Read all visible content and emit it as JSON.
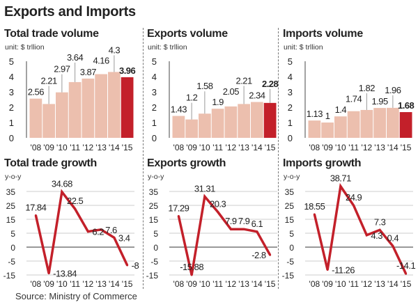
{
  "title": "Exports and Imports",
  "source": "Source: Ministry of Commerce",
  "colors": {
    "bar": "#ecbfae",
    "bar_highlight": "#c3202a",
    "line": "#c3202a"
  },
  "chart_data": [
    {
      "type": "bar",
      "title": "Total trade volume",
      "unit": "unit: $ trllion",
      "categories": [
        "'08",
        "'09",
        "'10",
        "'11",
        "'12",
        "'13",
        "'14",
        "'15"
      ],
      "values": [
        2.56,
        2.21,
        2.97,
        3.64,
        3.87,
        4.16,
        4.3,
        3.96
      ],
      "yticks": [
        0,
        1,
        2,
        3,
        4,
        5
      ],
      "ylim": [
        0,
        5
      ],
      "highlight": "'15"
    },
    {
      "type": "bar",
      "title": "Exports volume",
      "unit": "unit: $ trllion",
      "categories": [
        "'08",
        "'09",
        "'10",
        "'11",
        "'12",
        "'13",
        "'14",
        "'15"
      ],
      "values": [
        1.43,
        1.2,
        1.58,
        1.9,
        2.05,
        2.21,
        2.34,
        2.28
      ],
      "yticks": [
        0,
        1,
        2,
        3,
        4,
        5
      ],
      "ylim": [
        0,
        5
      ],
      "highlight": "'15"
    },
    {
      "type": "bar",
      "title": "Imports volume",
      "unit": "unit: $ trllion",
      "categories": [
        "'08",
        "'09",
        "'10",
        "'11",
        "'12",
        "'13",
        "'14",
        "'15"
      ],
      "values": [
        1.13,
        1,
        1.4,
        1.74,
        1.82,
        1.95,
        1.96,
        1.68
      ],
      "yticks": [
        0,
        1,
        2,
        3,
        4,
        5
      ],
      "ylim": [
        0,
        5
      ],
      "highlight": "'15"
    },
    {
      "type": "line",
      "title": "Total trade growth",
      "unit": "y-o-y",
      "categories": [
        "'08",
        "'09",
        "'10",
        "'11",
        "'12",
        "'13",
        "'14",
        "'15"
      ],
      "values": [
        17.84,
        -13.84,
        34.68,
        22.5,
        6.2,
        7.6,
        3.4,
        -8
      ],
      "yticks": [
        35,
        25,
        15,
        5,
        0,
        -5,
        -15
      ],
      "grid": true
    },
    {
      "type": "line",
      "title": "Exports growth",
      "unit": "y-o-y",
      "categories": [
        "'08",
        "'09",
        "'10",
        "'11",
        "'12",
        "'13",
        "'14",
        "'15"
      ],
      "values": [
        17.29,
        -15.88,
        31.31,
        20.3,
        7.9,
        7.9,
        6.1,
        -2.8
      ],
      "yticks": [
        35,
        25,
        15,
        5,
        0,
        -5,
        -15
      ],
      "grid": true
    },
    {
      "type": "line",
      "title": "Imports growth",
      "unit": "y-o-y",
      "categories": [
        "'08",
        "'09",
        "'10",
        "'11",
        "'12",
        "'13",
        "'14",
        "'15"
      ],
      "values": [
        18.55,
        -11.26,
        38.71,
        24.9,
        4.3,
        7.3,
        0.4,
        -14.1
      ],
      "yticks": [
        35,
        25,
        15,
        5,
        0,
        -5,
        -15
      ],
      "grid": true
    }
  ]
}
